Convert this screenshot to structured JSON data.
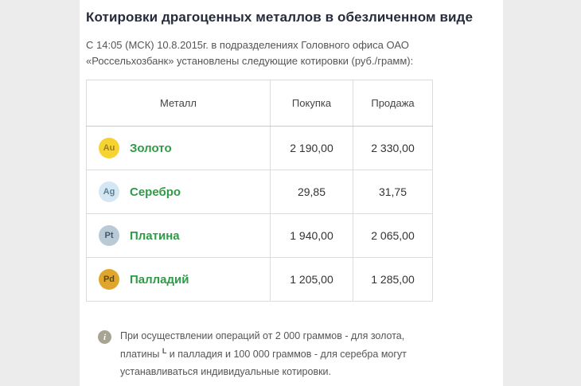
{
  "page": {
    "title": "Котировки драгоценных металлов в обезличенном виде",
    "subtitle": "С 14:05 (МСК) 10.8.2015г. в подразделениях Головного офиса ОАО «Россельхозбанк» установлены следующие котировки (руб./грамм):"
  },
  "table": {
    "columns": [
      "Металл",
      "Покупка",
      "Продажа"
    ],
    "rows": [
      {
        "symbol": "Au",
        "name": "Золото",
        "buy": "2 190,00",
        "sell": "2 330,00",
        "icon_bg": "#f6d330",
        "icon_text": "#9d8017"
      },
      {
        "symbol": "Ag",
        "name": "Серебро",
        "buy": "29,85",
        "sell": "31,75",
        "icon_bg": "#d4e7f2",
        "icon_text": "#5b7f99"
      },
      {
        "symbol": "Pt",
        "name": "Платина",
        "buy": "1 940,00",
        "sell": "2 065,00",
        "icon_bg": "#b9c9d6",
        "icon_text": "#42586c"
      },
      {
        "symbol": "Pd",
        "name": "Палладий",
        "buy": "1 205,00",
        "sell": "1 285,00",
        "icon_bg": "#dfa52c",
        "icon_text": "#5f4a0e"
      }
    ]
  },
  "note": {
    "icon_glyph": "i",
    "text_before": "При осуществлении операций от 2 000 граммов - для золота, платины ",
    "marker": "L",
    "text_after": " и палладия и 100 000 граммов - для серебра могут устанавливаться индивидуальные котировки."
  },
  "colors": {
    "background": "#ececec",
    "panel": "#ffffff",
    "title_text": "#262c3b",
    "body_text": "#555555",
    "accent_green": "#2f9a47",
    "table_border": "#dcdcdc",
    "note_icon_bg": "#a8a492"
  }
}
